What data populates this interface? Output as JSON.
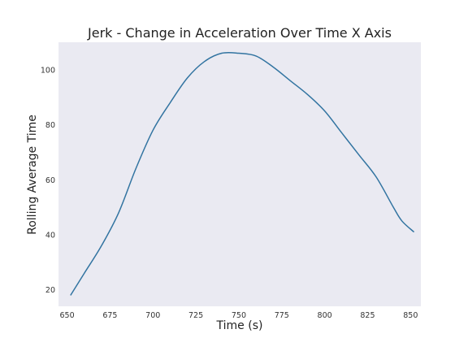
{
  "chart_data": {
    "type": "line",
    "title": "Jerk - Change in Acceleration Over Time X Axis",
    "xlabel": "Time (s)",
    "ylabel": "Rolling Average Time",
    "xlim": [
      645,
      856
    ],
    "ylim": [
      14,
      110
    ],
    "xticks": [
      650,
      675,
      700,
      725,
      750,
      775,
      800,
      825,
      850
    ],
    "yticks": [
      20,
      40,
      60,
      80,
      100
    ],
    "grid": false,
    "legend": false,
    "background_color": "#eaeaf2",
    "line_color": "#3274a1",
    "series": [
      {
        "x": [
          652,
          660,
          670,
          680,
          690,
          700,
          710,
          720,
          730,
          740,
          750,
          760,
          770,
          780,
          790,
          800,
          810,
          820,
          830,
          840,
          845,
          852
        ],
        "y": [
          18,
          26,
          36,
          48,
          64,
          78,
          88,
          97,
          103,
          106,
          106,
          105,
          101,
          96,
          91,
          85,
          77,
          69,
          61,
          50,
          45,
          41
        ]
      }
    ]
  }
}
